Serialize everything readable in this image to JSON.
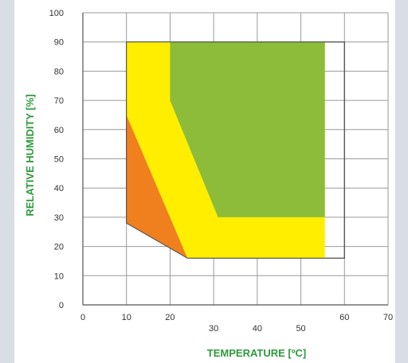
{
  "chart_data": {
    "type": "area",
    "xlabel": "TEMPERATURE [ºC]",
    "ylabel": "RELATIVE HUMIDITY [%]",
    "xlim": [
      0,
      70
    ],
    "ylim": [
      0,
      100
    ],
    "x_ticks": [
      0,
      10,
      20,
      30,
      40,
      50,
      60,
      70
    ],
    "y_ticks": [
      0,
      10,
      20,
      30,
      40,
      50,
      60,
      70,
      80,
      90,
      100
    ],
    "grid": true,
    "regions": [
      {
        "name": "outer-boundary",
        "color": "#555555",
        "points": [
          [
            10,
            90
          ],
          [
            60,
            90
          ],
          [
            60,
            16
          ],
          [
            24,
            16
          ],
          [
            10,
            28
          ]
        ]
      },
      {
        "name": "orange-region",
        "color": "#f07f1e",
        "points": [
          [
            10,
            28
          ],
          [
            10,
            65
          ],
          [
            24,
            16
          ]
        ]
      },
      {
        "name": "yellow-region",
        "color": "#ffee00",
        "points": [
          [
            10,
            90
          ],
          [
            55.5,
            90
          ],
          [
            55.5,
            16
          ],
          [
            24,
            16
          ],
          [
            10,
            65
          ]
        ]
      },
      {
        "name": "green-region",
        "color": "#8cbc3a",
        "points": [
          [
            20,
            90
          ],
          [
            55.5,
            90
          ],
          [
            55.5,
            30
          ],
          [
            31,
            30
          ],
          [
            20,
            70
          ]
        ]
      }
    ]
  }
}
